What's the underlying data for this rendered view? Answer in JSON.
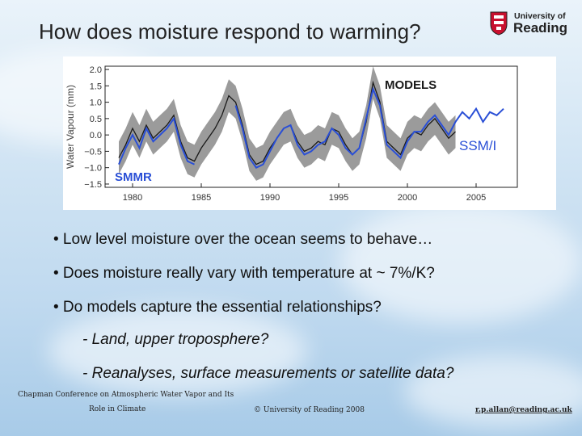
{
  "slide": {
    "title": "How does moisture respond to warming?",
    "logo": {
      "line1": "University of",
      "line2": "Reading"
    }
  },
  "chart_data": {
    "type": "line",
    "title": "",
    "xlabel": "",
    "ylabel": "Water Vapour (mm)",
    "xlim": [
      1978,
      2008
    ],
    "ylim": [
      -1.6,
      2.1
    ],
    "x_ticks": [
      1980,
      1985,
      1990,
      1995,
      2000,
      2005
    ],
    "y_ticks": [
      -1.5,
      -1.0,
      -0.5,
      0.0,
      0.5,
      1.0,
      1.5,
      2.0
    ],
    "y_tick_labels": [
      "−1.5",
      "−1.0",
      "−0.5",
      "0.0",
      "0.5",
      "1.0",
      "1.5",
      "2.0"
    ],
    "annotations": [
      "MODELS",
      "SSM/I",
      "SMMR"
    ],
    "colors": {
      "models_mean": "#1a1a1a",
      "models_spread": "#8a8a8a",
      "observations": "#2a4fd6",
      "labels": "#2a4fd6"
    },
    "series": [
      {
        "name": "MODELS",
        "x": [
          1979.0,
          1979.5,
          1980.0,
          1980.5,
          1981.0,
          1981.5,
          1982.0,
          1982.5,
          1983.0,
          1983.5,
          1984.0,
          1984.5,
          1985.0,
          1985.5,
          1986.0,
          1986.5,
          1987.0,
          1987.5,
          1988.0,
          1988.5,
          1989.0,
          1989.5,
          1990.0,
          1990.5,
          1991.0,
          1991.5,
          1992.0,
          1992.5,
          1993.0,
          1993.5,
          1994.0,
          1994.5,
          1995.0,
          1995.5,
          1996.0,
          1996.5,
          1997.0,
          1997.5,
          1998.0,
          1998.5,
          1999.0,
          1999.5,
          2000.0,
          2000.5,
          2001.0,
          2001.5,
          2002.0,
          2002.5,
          2003.0,
          2003.5
        ],
        "values": [
          -0.7,
          -0.3,
          0.2,
          -0.2,
          0.3,
          -0.1,
          0.1,
          0.3,
          0.6,
          -0.2,
          -0.7,
          -0.8,
          -0.4,
          -0.1,
          0.2,
          0.6,
          1.2,
          1.0,
          0.3,
          -0.6,
          -0.9,
          -0.8,
          -0.4,
          -0.1,
          0.2,
          0.3,
          -0.2,
          -0.5,
          -0.4,
          -0.2,
          -0.3,
          0.2,
          0.1,
          -0.3,
          -0.6,
          -0.4,
          0.4,
          1.6,
          1.0,
          -0.2,
          -0.4,
          -0.6,
          -0.1,
          0.1,
          0.0,
          0.3,
          0.5,
          0.2,
          -0.1,
          0.1
        ],
        "spread": 0.5
      },
      {
        "name": "SSM/I",
        "x": [
          1987.5,
          1988.0,
          1988.5,
          1989.0,
          1989.5,
          1990.0,
          1990.5,
          1991.0,
          1991.5,
          1992.0,
          1992.5,
          1993.0,
          1993.5,
          1994.0,
          1994.5,
          1995.0,
          1995.5,
          1996.0,
          1996.5,
          1997.0,
          1997.5,
          1998.0,
          1998.5,
          1999.0,
          1999.5,
          2000.0,
          2000.5,
          2001.0,
          2001.5,
          2002.0,
          2002.5,
          2003.0,
          2003.5,
          2004.0,
          2004.5,
          2005.0,
          2005.5,
          2006.0,
          2006.5,
          2007.0
        ],
        "values": [
          0.9,
          0.2,
          -0.7,
          -1.0,
          -0.9,
          -0.5,
          -0.1,
          0.2,
          0.3,
          -0.3,
          -0.6,
          -0.5,
          -0.3,
          -0.2,
          0.2,
          0.0,
          -0.4,
          -0.6,
          -0.4,
          0.5,
          1.4,
          0.9,
          -0.3,
          -0.5,
          -0.7,
          -0.2,
          0.1,
          0.1,
          0.4,
          0.6,
          0.3,
          0.0,
          0.4,
          0.7,
          0.5,
          0.8,
          0.4,
          0.7,
          0.6,
          0.8
        ]
      },
      {
        "name": "SMMR",
        "x": [
          1979.0,
          1979.5,
          1980.0,
          1980.5,
          1981.0,
          1981.5,
          1982.0,
          1982.5,
          1983.0,
          1983.5,
          1984.0,
          1984.5
        ],
        "values": [
          -0.9,
          -0.4,
          0.0,
          -0.4,
          0.2,
          -0.2,
          0.0,
          0.2,
          0.5,
          -0.3,
          -0.8,
          -0.9
        ]
      }
    ]
  },
  "bullets": [
    "• Low level moisture over the ocean seems to behave…",
    "• Does moisture really vary  with temperature at ~ 7%/K?",
    "• Do models capture the essential relationships?"
  ],
  "sub_bullets": [
    "- Land, upper troposphere?",
    "- Reanalyses, surface measurements or satellite data?"
  ],
  "footer": {
    "conference_line1": "Chapman Conference on Atmospheric Water Vapor and Its",
    "conference_line2": "Role in Climate",
    "copyright": "© University of Reading 2008",
    "email": "r.p.allan@reading.ac.uk"
  }
}
